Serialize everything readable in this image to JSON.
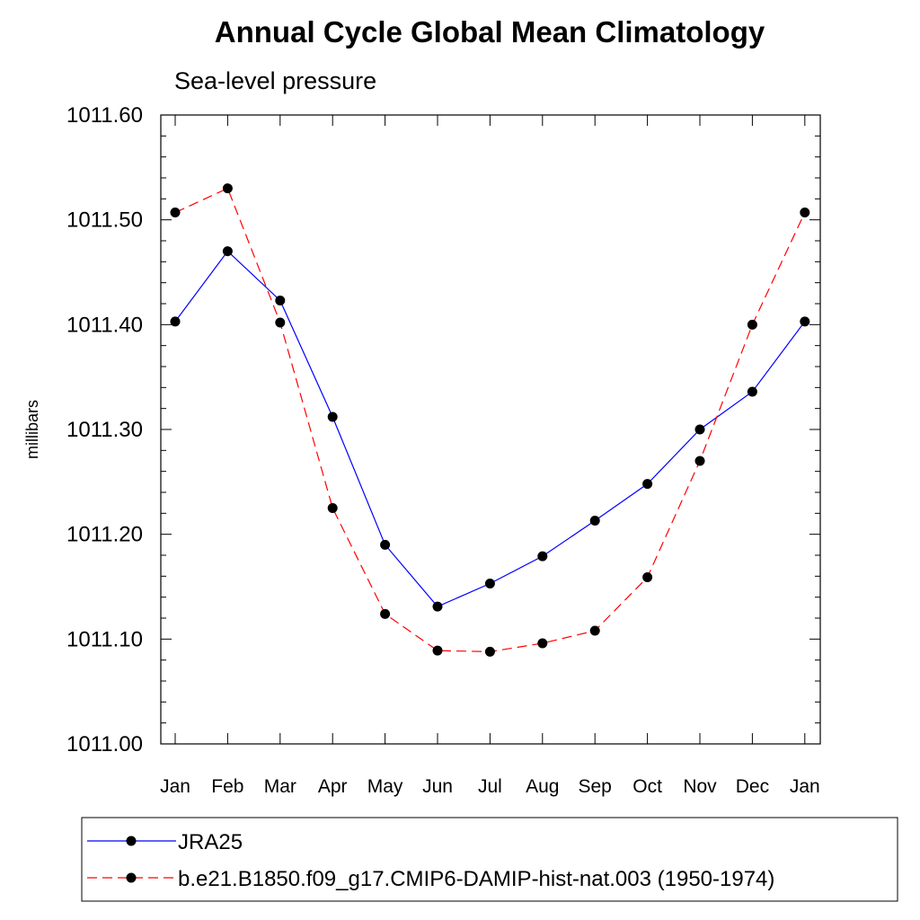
{
  "chart_data": {
    "type": "line",
    "title": "Annual Cycle Global Mean Climatology",
    "subtitle": "Sea-level pressure",
    "xlabel": "",
    "ylabel": "millibars",
    "ylim": [
      1011.0,
      1011.6
    ],
    "ytick_labels": [
      "1011.00",
      "1011.10",
      "1011.20",
      "1011.30",
      "1011.40",
      "1011.50",
      "1011.60"
    ],
    "categories": [
      "Jan",
      "Feb",
      "Mar",
      "Apr",
      "May",
      "Jun",
      "Jul",
      "Aug",
      "Sep",
      "Oct",
      "Nov",
      "Dec",
      "Jan"
    ],
    "grid": false,
    "legend_position": "bottom",
    "series": [
      {
        "name": "JRA25",
        "color": "#0000ff",
        "dash": "solid",
        "values": [
          1011.403,
          1011.47,
          1011.423,
          1011.312,
          1011.19,
          1011.131,
          1011.153,
          1011.179,
          1011.213,
          1011.248,
          1011.3,
          1011.336,
          1011.403
        ]
      },
      {
        "name": "b.e21.B1850.f09_g17.CMIP6-DAMIP-hist-nat.003 (1950-1974)",
        "color": "#ff0000",
        "dash": "dashed",
        "values": [
          1011.507,
          1011.53,
          1011.402,
          1011.225,
          1011.124,
          1011.089,
          1011.088,
          1011.096,
          1011.108,
          1011.159,
          1011.27,
          1011.4,
          1011.507
        ]
      }
    ]
  }
}
